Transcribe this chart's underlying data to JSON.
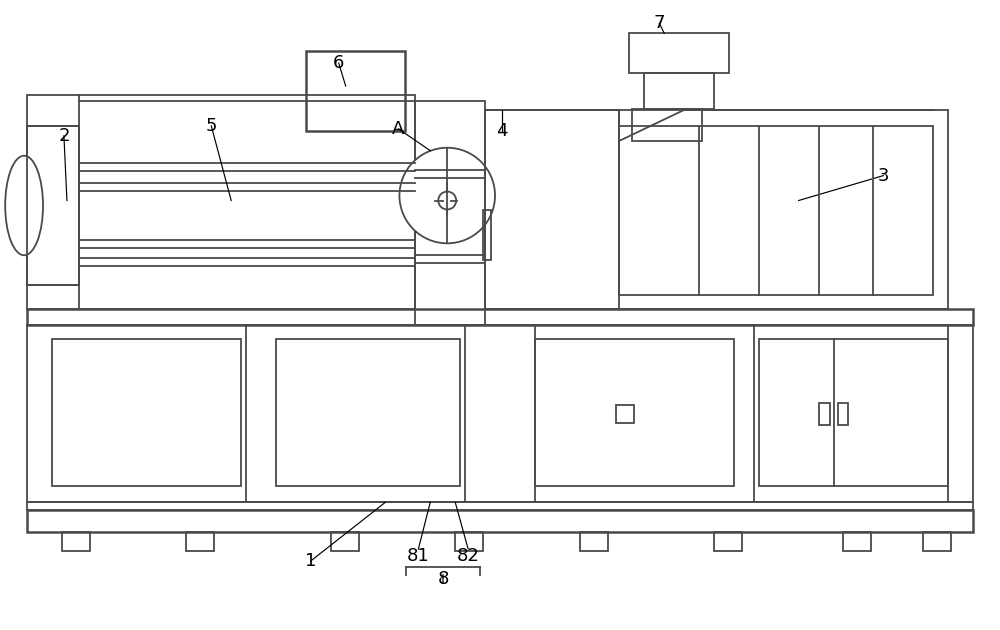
{
  "bg_color": "#ffffff",
  "line_color": "#4a4a4a",
  "lw": 1.3,
  "lw2": 1.8,
  "fig_width": 10.0,
  "fig_height": 6.3
}
